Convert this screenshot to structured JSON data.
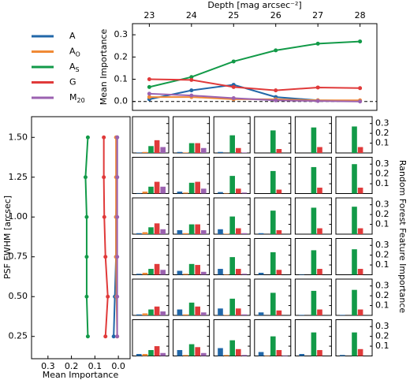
{
  "chart_data": [
    {
      "type": "line",
      "xlabel": "Depth [mag arcsec⁻²]",
      "ylabel": "Mean Importance",
      "x": [
        23,
        24,
        25,
        26,
        27,
        28
      ],
      "xlim": [
        22.6,
        28.4
      ],
      "xticks": [
        23,
        24,
        25,
        26,
        27,
        28
      ],
      "ylim": [
        -0.04,
        0.35
      ],
      "yticks": [
        {
          "value": 0,
          "label": "0.0"
        },
        0.1,
        0.2,
        0.3
      ],
      "hline": 0,
      "series": [
        {
          "name": "A",
          "color": "#2167a8",
          "values": [
            0.01,
            0.05,
            0.075,
            0.02,
            0.005,
            0.003
          ]
        },
        {
          "name": "AO",
          "color": "#f08a36",
          "values": [
            0.02,
            0.02,
            0.01,
            0.01,
            0.005,
            0.005
          ]
        },
        {
          "name": "AS",
          "color": "#129a48",
          "values": [
            0.065,
            0.11,
            0.18,
            0.23,
            0.26,
            0.27
          ]
        },
        {
          "name": "G",
          "color": "#e03a3a",
          "values": [
            0.1,
            0.097,
            0.065,
            0.05,
            0.063,
            0.06
          ]
        },
        {
          "name": "M20",
          "color": "#9b62b0",
          "values": [
            0.035,
            0.027,
            0.015,
            0.005,
            0.002,
            0
          ]
        }
      ]
    },
    {
      "type": "hline",
      "xlabel": "Mean Importance",
      "ylabel": "PSF FWHM [arcsec]",
      "y": [
        0.25,
        0.5,
        0.75,
        1.0,
        1.25,
        1.5
      ],
      "ylim": [
        0.11,
        1.63
      ],
      "yticks": [
        0.25,
        {
          "value": 0.5,
          "label": "0.50"
        },
        0.75,
        {
          "value": 1,
          "label": "1.00"
        },
        1.25,
        {
          "value": 1.5,
          "label": "1.50"
        }
      ],
      "xlim": [
        0.37,
        -0.05
      ],
      "xticks": [
        0.3,
        0.2,
        0.1,
        {
          "value": 0,
          "label": "0.0"
        }
      ],
      "series": [
        {
          "values": [
            0.02,
            0.015,
            0.01,
            0.01,
            0.005,
            0.005
          ]
        },
        {
          "values": [
            0.005,
            0.008,
            0.01,
            0.01,
            0.01,
            0.01
          ]
        },
        {
          "values": [
            0.13,
            0.135,
            0.135,
            0.135,
            0.14,
            0.13
          ]
        },
        {
          "values": [
            0.055,
            0.045,
            0.055,
            0.06,
            0.062,
            0.062
          ]
        },
        {
          "values": [
            0.005,
            0.005,
            0.005,
            0.005,
            0.005,
            0.005
          ]
        }
      ]
    },
    {
      "type": "bargrid",
      "ylabel": "Random Forest Feature Importance",
      "ylim": [
        0,
        0.37
      ],
      "yticks": [
        0.1,
        0.2,
        0.3
      ],
      "panels": [
        [
          [
            0.005,
            0.01,
            0.07,
            0.13,
            0.06
          ],
          [
            0.01,
            0.005,
            0.1,
            0.1,
            0.05
          ],
          [
            0.01,
            0,
            0.18,
            0.05,
            0.005
          ],
          [
            0,
            0,
            0.23,
            0.04,
            0
          ],
          [
            0,
            0,
            0.26,
            0.06,
            0
          ],
          [
            0,
            0,
            0.27,
            0.06,
            0
          ]
        ],
        [
          [
            0.005,
            0.02,
            0.07,
            0.12,
            0.07
          ],
          [
            0.02,
            0.01,
            0.11,
            0.12,
            0.05
          ],
          [
            0.015,
            0.005,
            0.18,
            0.05,
            0.01
          ],
          [
            0,
            0,
            0.23,
            0.04,
            0
          ],
          [
            0,
            0,
            0.27,
            0.06,
            0
          ],
          [
            0,
            0,
            0.3,
            0.06,
            0
          ]
        ],
        [
          [
            0.01,
            0.02,
            0.07,
            0.11,
            0.05
          ],
          [
            0.04,
            0.01,
            0.1,
            0.1,
            0.04
          ],
          [
            0.05,
            0.005,
            0.18,
            0.06,
            0.01
          ],
          [
            0.01,
            0,
            0.24,
            0.04,
            0
          ],
          [
            0,
            0,
            0.27,
            0.06,
            0
          ],
          [
            0,
            0,
            0.28,
            0.06,
            0
          ]
        ],
        [
          [
            0.01,
            0.02,
            0.06,
            0.11,
            0.05
          ],
          [
            0.04,
            0.01,
            0.11,
            0.1,
            0.03
          ],
          [
            0.06,
            0.005,
            0.18,
            0.06,
            0.01
          ],
          [
            0.02,
            0,
            0.23,
            0.05,
            0
          ],
          [
            0.005,
            0,
            0.25,
            0.06,
            0
          ],
          [
            0,
            0,
            0.26,
            0.06,
            0
          ]
        ],
        [
          [
            0.01,
            0.02,
            0.06,
            0.09,
            0.04
          ],
          [
            0.06,
            0.01,
            0.13,
            0.09,
            0.03
          ],
          [
            0.07,
            0.005,
            0.17,
            0.07,
            0.01
          ],
          [
            0.03,
            0,
            0.23,
            0.05,
            0
          ],
          [
            0.005,
            0,
            0.25,
            0.06,
            0
          ],
          [
            0.005,
            0,
            0.26,
            0.06,
            0
          ]
        ],
        [
          [
            0.02,
            0.02,
            0.06,
            0.1,
            0.03
          ],
          [
            0.06,
            0.01,
            0.12,
            0.09,
            0.03
          ],
          [
            0.08,
            0.01,
            0.16,
            0.07,
            0.01
          ],
          [
            0.04,
            0.005,
            0.2,
            0.06,
            0.005
          ],
          [
            0.02,
            0,
            0.24,
            0.06,
            0
          ],
          [
            0.01,
            0,
            0.24,
            0.07,
            0
          ]
        ]
      ]
    }
  ]
}
